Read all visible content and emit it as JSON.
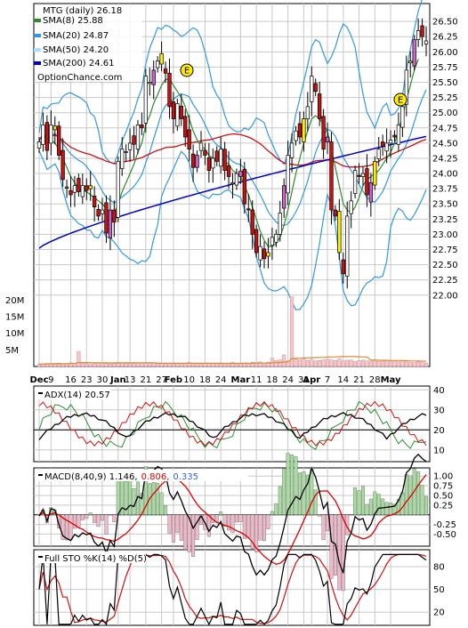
{
  "chart_data": [
    {
      "type": "candlestick",
      "legend": [
        {
          "label": "MTG (daily) 26.18",
          "color": "#000000"
        },
        {
          "label": "SMA(8) 25.88",
          "color": "#2e8b2e"
        },
        {
          "label": "SMA(20) 24.87",
          "color": "#3399dd"
        },
        {
          "label": "SMA(50) 24.20",
          "color": "#cc1111"
        },
        {
          "label": "SMA(200) 24.61",
          "color": "#0000cc"
        }
      ],
      "watermark": "OptionChance.com",
      "x_labels": [
        "Dec",
        "9",
        "16",
        "23",
        "30",
        "Jan",
        "13",
        "21",
        "27",
        "Feb",
        "10",
        "18",
        "24",
        "Mar",
        "11",
        "18",
        "24",
        "31",
        "Apr",
        "7",
        "14",
        "21",
        "28",
        "May"
      ],
      "x_labels_bold": [
        "Dec",
        "Jan",
        "Feb",
        "Mar",
        "Apr",
        "May"
      ],
      "y_ticks": [
        "26.50",
        "26.25",
        "26.00",
        "25.75",
        "25.50",
        "25.25",
        "25.00",
        "24.75",
        "24.50",
        "24.25",
        "24.00",
        "23.75",
        "23.50",
        "23.25",
        "23.00",
        "22.75",
        "22.50",
        "22.25",
        "22.00"
      ],
      "ylim": [
        21.88,
        26.78
      ],
      "grid": true,
      "events": [
        "E",
        "E"
      ],
      "close": [
        24.52,
        24.8,
        24.38,
        24.8,
        24.78,
        24.3,
        23.9,
        23.76,
        23.65,
        23.8,
        23.7,
        23.8,
        23.72,
        23.75,
        23.45,
        23.3,
        23.4,
        23.02,
        23.4,
        23.2,
        24.2,
        24.4,
        24.35,
        24.5,
        24.48,
        24.8,
        24.75,
        25.6,
        25.5,
        25.7,
        25.85,
        25.8,
        25.65,
        25.1,
        24.9,
        25.15,
        24.9,
        24.6,
        24.4,
        24.1,
        24.3,
        24.5,
        24.3,
        24.05,
        24.25,
        24.2,
        24.4,
        24.05,
        23.95,
        23.85,
        24.0,
        23.95,
        23.5,
        23.4,
        23.0,
        22.7,
        22.8,
        22.6,
        22.7,
        22.95,
        23.0,
        23.35,
        23.8,
        24.3,
        24.5,
        24.7,
        24.6,
        24.9,
        25.1,
        25.6,
        25.35,
        24.9,
        24.4,
        24.6,
        23.4,
        23.3,
        22.7,
        22.35,
        23.3,
        23.55,
        24.05,
        23.95,
        24.0,
        23.65,
        23.85,
        24.2,
        24.4,
        24.45,
        24.5,
        24.55,
        24.6,
        24.8,
        25.1,
        25.7,
        25.85,
        26.2,
        26.35,
        26.25,
        26.18
      ],
      "sma8": [
        24.45,
        24.5,
        24.55,
        24.55,
        24.5,
        24.4,
        24.25,
        24.1,
        23.95,
        23.85,
        23.75,
        23.72,
        23.7,
        23.65,
        23.6,
        23.55,
        23.5,
        23.42,
        23.38,
        23.35,
        23.5,
        23.7,
        23.85,
        24.0,
        24.15,
        24.35,
        24.5,
        24.8,
        24.95,
        25.15,
        25.3,
        25.45,
        25.55,
        25.55,
        25.45,
        25.35,
        25.25,
        25.1,
        24.9,
        24.7,
        24.55,
        24.45,
        24.4,
        24.3,
        24.25,
        24.25,
        24.25,
        24.2,
        24.15,
        24.05,
        24.0,
        23.95,
        23.8,
        23.65,
        23.45,
        23.25,
        23.05,
        22.9,
        22.8,
        22.8,
        22.85,
        22.95,
        23.15,
        23.4,
        23.7,
        24.0,
        24.25,
        24.5,
        24.7,
        24.9,
        24.95,
        24.9,
        24.8,
        24.7,
        24.4,
        24.1,
        23.8,
        23.5,
        23.4,
        23.35,
        23.45,
        23.6,
        23.8,
        23.9,
        23.95,
        24.0,
        24.05,
        24.15,
        24.25,
        24.35,
        24.5,
        24.7,
        24.95,
        25.2,
        25.45,
        25.7,
        25.88
      ]
    },
    {
      "type": "bar",
      "title": "Volume",
      "y_ticks": [
        "20M",
        "15M",
        "10M",
        "5M"
      ],
      "ylim": [
        0,
        22000000
      ],
      "values": [
        0.7,
        0.8,
        0.9,
        0.8,
        0.9,
        1.0,
        0.8,
        0.9,
        1.1,
        0.9,
        4.5,
        1.0,
        0.9,
        0.8,
        0.9,
        0.8,
        1.0,
        0.9,
        0.8,
        0.9,
        1.2,
        1.0,
        0.9,
        1.0,
        0.9,
        1.1,
        1.0,
        1.2,
        0.9,
        1.0,
        1.1,
        1.0,
        0.9,
        1.0,
        0.8,
        0.9,
        1.0,
        0.9,
        1.2,
        0.9,
        0.8,
        1.0,
        0.9,
        1.0,
        0.9,
        1.0,
        0.8,
        0.9,
        1.0,
        1.2,
        0.9,
        1.0,
        1.1,
        0.9,
        1.3,
        1.2,
        1.4,
        1.0,
        1.3,
        2.5,
        1.8,
        2.0,
        3.5,
        1.7,
        21.0,
        2.2,
        2.0,
        2.3,
        1.8,
        2.0,
        1.7,
        1.8,
        2.0,
        2.2,
        2.0,
        1.8,
        2.3,
        1.7,
        1.9,
        2.0,
        1.5,
        1.8,
        1.9,
        1.7,
        1.6,
        2.0,
        1.5,
        1.6,
        1.8,
        1.5,
        1.6,
        1.4,
        1.7,
        1.4,
        1.3,
        1.2,
        1.4,
        1.2,
        1.0
      ]
    },
    {
      "type": "line",
      "title": "ADX(14) 20.57",
      "y_ticks": [
        "40",
        "30",
        "20",
        "10"
      ],
      "ylim": [
        5,
        41
      ],
      "series": [
        {
          "name": "ADX(14) 20.57",
          "color": "#000000"
        },
        {
          "name": "+DI",
          "color": "#2e8b2e"
        },
        {
          "name": "-DI",
          "color": "#cc1111"
        }
      ]
    },
    {
      "type": "line",
      "title": "MACD(8,40,9) 1.146,",
      "values_shown": [
        "0.806,",
        "0.335"
      ],
      "y_ticks": [
        "1.00",
        "0.75",
        "0.50",
        "0.25",
        "-0.25",
        "-0.50"
      ],
      "ylim": [
        -0.72,
        1.12
      ],
      "series": [
        {
          "name": "MACD(8,40,9) 1.146,",
          "color": "#000000"
        },
        {
          "name": "0.806,",
          "color": "#dd0000"
        },
        {
          "name": "0.335",
          "color": "#3366cc"
        }
      ]
    },
    {
      "type": "line",
      "title": "Full STO %K(14) %D(5)",
      "y_ticks": [
        "80",
        "50",
        "20"
      ],
      "ylim": [
        5,
        100
      ],
      "series": [
        {
          "name": "%K(14)",
          "color": "#000000"
        },
        {
          "name": "%D(5)",
          "color": "#cc1111"
        }
      ]
    }
  ]
}
